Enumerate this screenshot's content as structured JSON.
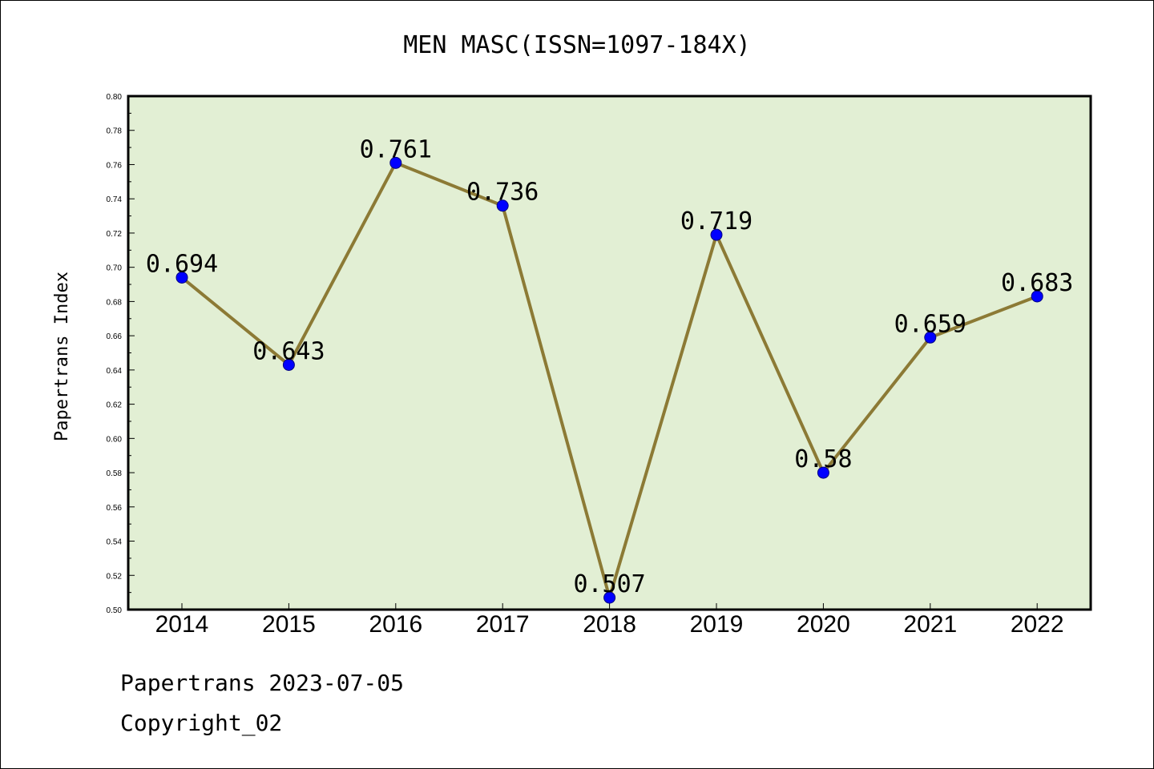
{
  "footer": {
    "line1": "Papertrans 2023-07-05",
    "line2": "Copyright_02"
  },
  "colors": {
    "plot_background": "#e2efd4",
    "line": "#8c7a35",
    "marker": "#0000ff",
    "marker_edge": "#000080"
  },
  "chart_data": {
    "type": "line",
    "title": "MEN MASC(ISSN=1097-184X)",
    "xlabel": "",
    "ylabel": "Papertrans Index",
    "categories": [
      "2014",
      "2015",
      "2016",
      "2017",
      "2018",
      "2019",
      "2020",
      "2021",
      "2022"
    ],
    "values": [
      0.694,
      0.643,
      0.761,
      0.736,
      0.507,
      0.719,
      0.58,
      0.659,
      0.683
    ],
    "data_labels": [
      "0.694",
      "0.643",
      "0.761",
      "0.736",
      "0.507",
      "0.719",
      "0.58",
      "0.659",
      "0.683"
    ],
    "ylim": [
      0.5,
      0.8
    ],
    "yticks": [
      "0.50",
      "0.52",
      "0.54",
      "0.56",
      "0.58",
      "0.60",
      "0.62",
      "0.64",
      "0.66",
      "0.68",
      "0.70",
      "0.72",
      "0.74",
      "0.76",
      "0.78",
      "0.80"
    ],
    "grid": false,
    "legend": "none"
  }
}
